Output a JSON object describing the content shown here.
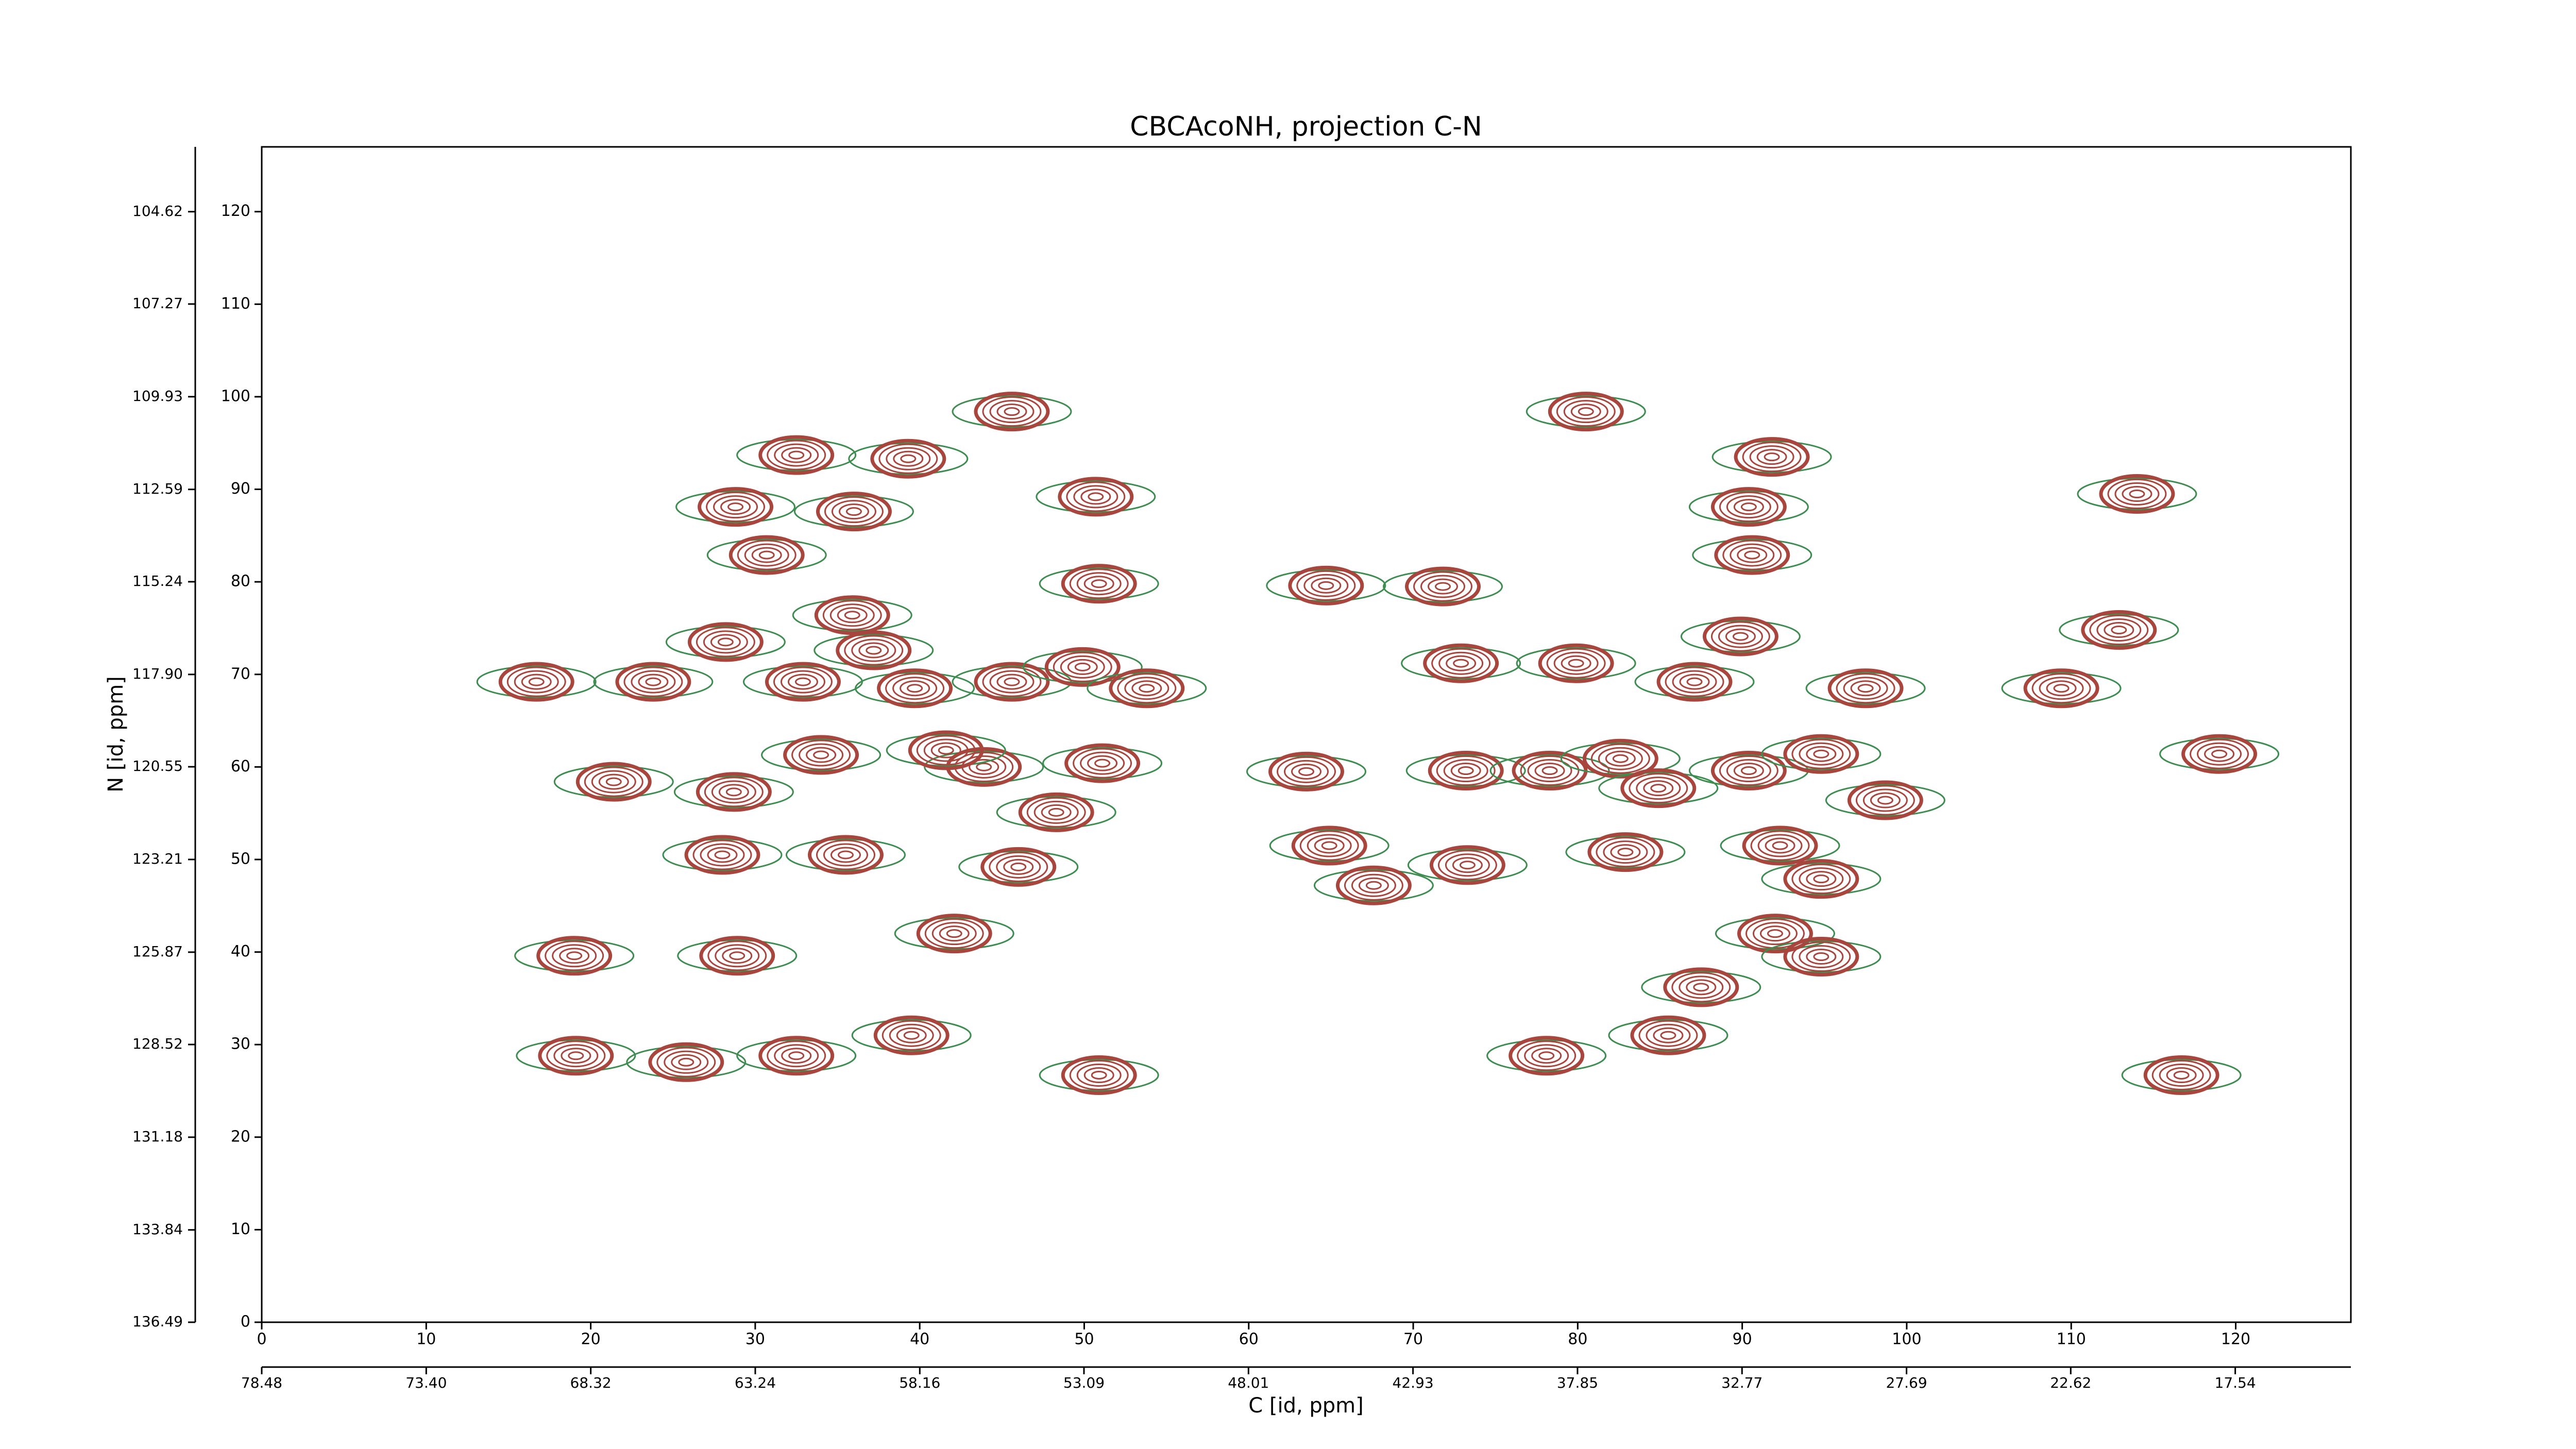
{
  "chart_data": {
    "type": "contour",
    "title": "CBCAcoNH, projection C-N",
    "x_label": "C [id, ppm]",
    "y_label": "N [id, ppm]",
    "xlim": [
      0,
      127
    ],
    "ylim": [
      0,
      127
    ],
    "xticks": [
      0,
      10,
      20,
      30,
      40,
      50,
      60,
      70,
      80,
      90,
      100,
      110,
      120
    ],
    "yticks": [
      0,
      10,
      20,
      30,
      40,
      50,
      60,
      70,
      80,
      90,
      100,
      110,
      120
    ],
    "x2lim": [
      78.48,
      13.97
    ],
    "x2ticks": [
      78.48,
      {
        "value": 73.4,
        "label": "73.40"
      },
      68.32,
      63.24,
      58.16,
      53.09,
      48.01,
      42.93,
      37.85,
      32.77,
      27.69,
      22.62,
      17.54
    ],
    "y2lim": [
      136.49,
      102.76
    ],
    "y2ticks": [
      136.49,
      133.84,
      131.18,
      128.52,
      125.87,
      123.21,
      120.55,
      {
        "value": 117.9,
        "label": "117.90"
      },
      115.24,
      112.59,
      109.93,
      107.27,
      104.62
    ],
    "color": "#a8453d",
    "negative_color": "#3d8c50",
    "peaks": {
      "x": [
        16.7,
        19.1,
        19.0,
        21.4,
        23.8,
        25.8,
        28.8,
        30.7,
        32.5,
        28.9,
        28.0,
        28.2,
        32.9,
        32.5,
        36.0,
        35.9,
        39.3,
        39.5,
        42.1,
        45.6,
        39.7,
        45.6,
        43.9,
        49.9,
        50.9,
        51.1,
        53.8,
        48.3,
        46.0,
        50.7,
        50.9,
        63.5,
        64.9,
        67.6,
        64.7,
        71.8,
        73.3,
        73.2,
        72.9,
        78.1,
        80.5,
        78.3,
        79.9,
        82.6,
        82.9,
        84.9,
        85.5,
        87.5,
        87.1,
        90.4,
        90.6,
        89.9,
        91.8,
        90.4,
        92.3,
        92.0,
        94.8,
        94.8,
        97.5,
        98.7,
        94.8,
        109.4,
        112.9,
        114.0,
        119.0,
        116.7,
        37.2,
        34.0,
        28.7,
        35.5,
        41.6
      ],
      "y": [
        69.2,
        28.8,
        39.6,
        58.4,
        69.2,
        28.1,
        88.1,
        82.9,
        93.7,
        39.6,
        50.5,
        73.5,
        69.2,
        28.8,
        87.6,
        76.4,
        93.3,
        31.0,
        42.0,
        98.4,
        68.5,
        69.2,
        60.0,
        70.8,
        79.8,
        60.4,
        68.5,
        55.1,
        49.2,
        89.2,
        26.7,
        59.5,
        51.5,
        47.2,
        79.6,
        79.5,
        49.4,
        59.6,
        71.2,
        28.8,
        98.4,
        59.6,
        71.2,
        60.9,
        50.8,
        57.7,
        31.0,
        36.2,
        69.2,
        88.1,
        82.9,
        74.1,
        93.5,
        59.6,
        51.5,
        42.0,
        61.4,
        47.9,
        68.5,
        56.4,
        39.5,
        68.5,
        74.8,
        89.5,
        61.4,
        26.7,
        72.6,
        61.3,
        57.3,
        50.5,
        61.8
      ]
    }
  }
}
